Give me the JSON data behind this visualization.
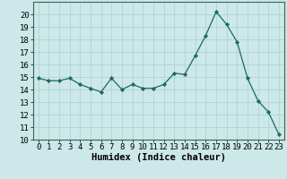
{
  "x": [
    0,
    1,
    2,
    3,
    4,
    5,
    6,
    7,
    8,
    9,
    10,
    11,
    12,
    13,
    14,
    15,
    16,
    17,
    18,
    19,
    20,
    21,
    22,
    23
  ],
  "y": [
    14.9,
    14.7,
    14.7,
    14.9,
    14.4,
    14.1,
    13.8,
    14.9,
    14.0,
    14.4,
    14.1,
    14.1,
    14.4,
    15.3,
    15.2,
    16.7,
    18.3,
    20.2,
    19.2,
    17.8,
    14.9,
    13.1,
    12.2,
    10.4
  ],
  "xlabel": "Humidex (Indice chaleur)",
  "xlim": [
    -0.5,
    23.5
  ],
  "ylim": [
    10,
    21
  ],
  "yticks": [
    10,
    11,
    12,
    13,
    14,
    15,
    16,
    17,
    18,
    19,
    20
  ],
  "xticks": [
    0,
    1,
    2,
    3,
    4,
    5,
    6,
    7,
    8,
    9,
    10,
    11,
    12,
    13,
    14,
    15,
    16,
    17,
    18,
    19,
    20,
    21,
    22,
    23
  ],
  "line_color": "#1a6b5a",
  "marker_color": "#1a6b5a",
  "bg_color": "#cce8e8",
  "grid_color": "#aad0d0",
  "xlabel_fontsize": 7.5,
  "tick_fontsize": 6.5
}
